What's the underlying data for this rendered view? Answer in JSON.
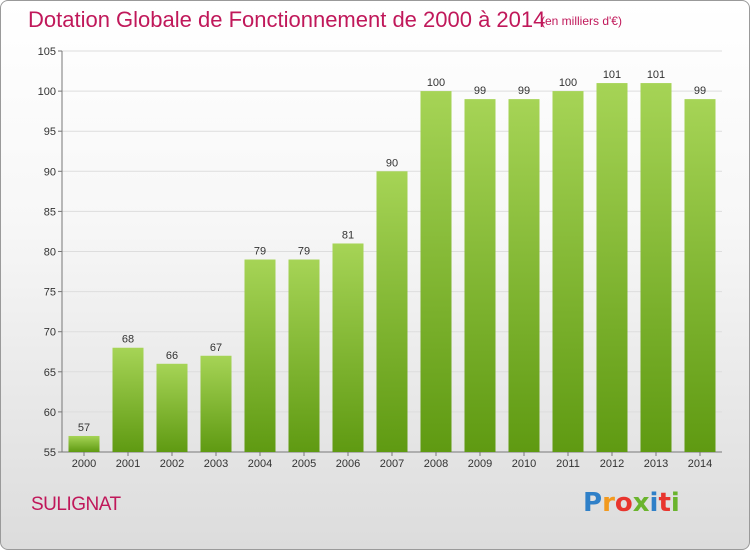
{
  "title": "Dotation Globale de Fonctionnement de 2000 à 2014",
  "subtitle": "(en milliers d'€)",
  "commune": "SULIGNAT",
  "logo": {
    "letters": [
      "P",
      "r",
      "o",
      "x",
      "i",
      "t",
      "i"
    ],
    "colors": [
      "#2f80c8",
      "#f29a1f",
      "#e8352e",
      "#6ab42d",
      "#2f80c8",
      "#e8352e",
      "#6ab42d"
    ]
  },
  "colors": {
    "bar_light": "#a6d456",
    "bar_dark": "#5f9a12",
    "title": "#c0185a"
  },
  "chart_data": {
    "type": "bar",
    "title": "Dotation Globale de Fonctionnement de 2000 à 2014",
    "subtitle": "(en milliers d'€)",
    "categories": [
      "2000",
      "2001",
      "2002",
      "2003",
      "2004",
      "2005",
      "2006",
      "2007",
      "2008",
      "2009",
      "2010",
      "2011",
      "2012",
      "2013",
      "2014"
    ],
    "values": [
      57,
      68,
      66,
      67,
      79,
      79,
      81,
      90,
      100,
      99,
      99,
      100,
      101,
      101,
      99
    ],
    "labels": [
      "57",
      "68",
      "66",
      "67",
      "79",
      "79",
      "81",
      "90",
      "100",
      "99",
      "99",
      "100",
      "101",
      "101",
      "99"
    ],
    "ylim": [
      55,
      105
    ],
    "yticks": [
      "55",
      "60",
      "65",
      "70",
      "75",
      "80",
      "85",
      "90",
      "95",
      "100",
      "105"
    ],
    "grid": true,
    "legend": "none"
  }
}
